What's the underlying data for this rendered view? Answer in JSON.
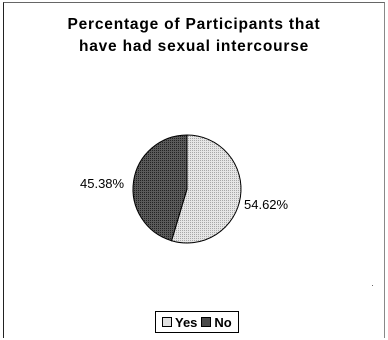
{
  "chart_data": {
    "type": "pie",
    "title_lines": [
      "Percentage of Participants that",
      "have had sexual intercourse"
    ],
    "categories": [
      "Yes",
      "No"
    ],
    "values": [
      54.62,
      45.38
    ],
    "labels": [
      "54.62%",
      "45.38%"
    ],
    "colors": [
      "#d9d9d9",
      "#4a4a4a"
    ],
    "legend_position": "bottom"
  }
}
